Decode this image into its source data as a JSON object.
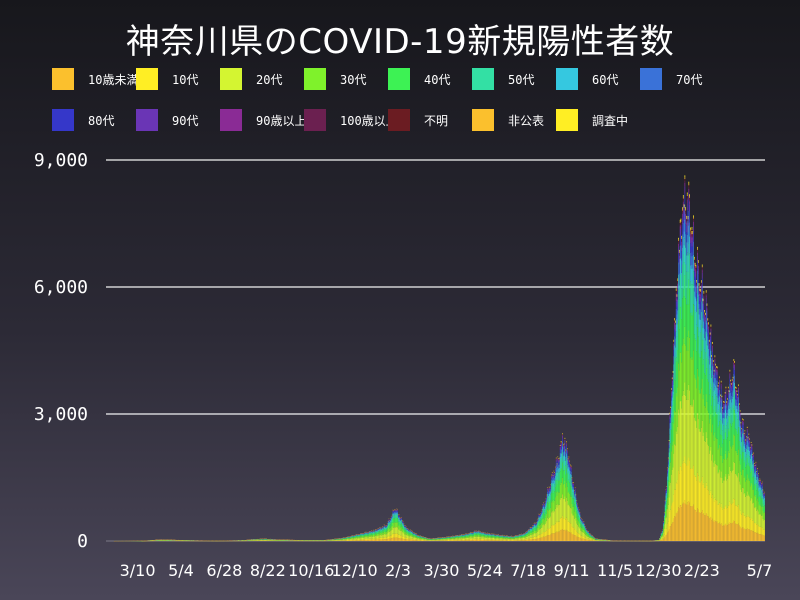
{
  "chart_data": {
    "type": "bar",
    "stacked": true,
    "title": "神奈川県のCOVID-19新規陽性者数",
    "ylim": [
      0,
      9000
    ],
    "yticks": [
      0,
      3000,
      6000,
      9000
    ],
    "ytick_labels": [
      "0",
      "3,000",
      "6,000",
      "9,000"
    ],
    "grid": true,
    "legend_position": "top",
    "x_tick_labels": [
      "3/10",
      "5/4",
      "6/28",
      "8/22",
      "10/16",
      "12/10",
      "2/3",
      "3/30",
      "5/24",
      "7/18",
      "9/11",
      "11/5",
      "12/30",
      "2/23",
      "5/7"
    ],
    "x_tick_days": [
      40,
      95,
      150,
      205,
      260,
      315,
      370,
      425,
      480,
      535,
      590,
      645,
      700,
      755,
      828
    ],
    "total_days": 835,
    "totals_profile": [
      [
        0,
        0
      ],
      [
        45,
        5
      ],
      [
        70,
        40
      ],
      [
        100,
        20
      ],
      [
        140,
        10
      ],
      [
        175,
        20
      ],
      [
        185,
        45
      ],
      [
        200,
        60
      ],
      [
        215,
        40
      ],
      [
        250,
        20
      ],
      [
        275,
        20
      ],
      [
        300,
        80
      ],
      [
        320,
        180
      ],
      [
        340,
        280
      ],
      [
        355,
        420
      ],
      [
        362,
        700
      ],
      [
        366,
        880
      ],
      [
        372,
        650
      ],
      [
        380,
        350
      ],
      [
        395,
        150
      ],
      [
        410,
        60
      ],
      [
        430,
        100
      ],
      [
        455,
        180
      ],
      [
        470,
        270
      ],
      [
        480,
        210
      ],
      [
        500,
        150
      ],
      [
        515,
        120
      ],
      [
        530,
        200
      ],
      [
        545,
        500
      ],
      [
        555,
        1000
      ],
      [
        565,
        1700
      ],
      [
        573,
        2200
      ],
      [
        578,
        2700
      ],
      [
        584,
        2400
      ],
      [
        592,
        1500
      ],
      [
        600,
        700
      ],
      [
        610,
        250
      ],
      [
        620,
        60
      ],
      [
        640,
        15
      ],
      [
        690,
        10
      ],
      [
        700,
        25
      ],
      [
        705,
        300
      ],
      [
        710,
        1500
      ],
      [
        715,
        3500
      ],
      [
        720,
        5500
      ],
      [
        725,
        7500
      ],
      [
        730,
        8700
      ],
      [
        735,
        9000
      ],
      [
        740,
        8600
      ],
      [
        745,
        7600
      ],
      [
        750,
        7000
      ],
      [
        758,
        6400
      ],
      [
        765,
        5400
      ],
      [
        770,
        4700
      ],
      [
        775,
        4300
      ],
      [
        782,
        3600
      ],
      [
        790,
        4100
      ],
      [
        795,
        4500
      ],
      [
        800,
        3900
      ],
      [
        805,
        3100
      ],
      [
        810,
        2800
      ],
      [
        815,
        2700
      ],
      [
        820,
        2200
      ],
      [
        825,
        1800
      ],
      [
        830,
        1500
      ],
      [
        835,
        1200
      ]
    ],
    "series": [
      {
        "name": "10歳未満",
        "color": "#fbc02d",
        "share": 0.11
      },
      {
        "name": "10代",
        "color": "#ffee24",
        "share": 0.12
      },
      {
        "name": "20代",
        "color": "#d4f531",
        "share": 0.2
      },
      {
        "name": "30代",
        "color": "#7ff22b",
        "share": 0.15
      },
      {
        "name": "40代",
        "color": "#3df254",
        "share": 0.14
      },
      {
        "name": "50代",
        "color": "#33e0a4",
        "share": 0.1
      },
      {
        "name": "60代",
        "color": "#35c8e0",
        "share": 0.05
      },
      {
        "name": "70代",
        "color": "#3a72d8",
        "share": 0.04
      },
      {
        "name": "80代",
        "color": "#3537c9",
        "share": 0.03
      },
      {
        "name": "90代",
        "color": "#6a35b5",
        "share": 0.02
      },
      {
        "name": "90歳以上",
        "color": "#8a2b95",
        "share": 0.01
      },
      {
        "name": "100歳以上",
        "color": "#6b2050",
        "share": 0.005
      },
      {
        "name": "不明",
        "color": "#6b1c22",
        "share": 0.005
      },
      {
        "name": "非公表",
        "color": "#fbc02d",
        "share": 0.005
      },
      {
        "name": "調査中",
        "color": "#ffee24",
        "share": 0.005
      }
    ]
  }
}
